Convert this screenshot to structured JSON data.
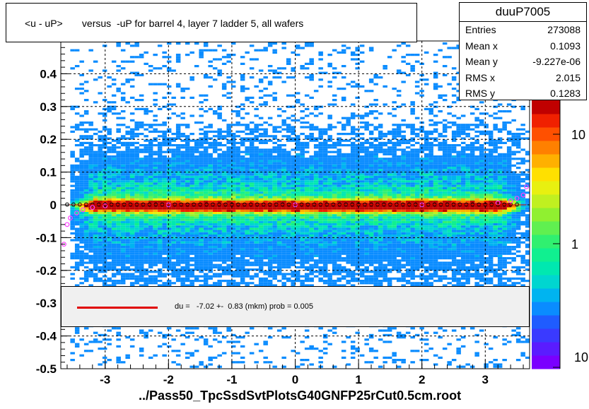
{
  "title": "<u - uP>       versus  -uP for barrel 4, layer 7 ladder 5, all wafers",
  "stats": {
    "name": "duuP7005",
    "rows": [
      {
        "k": "Entries",
        "v": "273088"
      },
      {
        "k": "Mean x",
        "v": "0.1093"
      },
      {
        "k": "Mean y",
        "v": "-9.227e-06"
      },
      {
        "k": "RMS x",
        "v": "2.015"
      },
      {
        "k": "RMS y",
        "v": "0.1283"
      }
    ]
  },
  "legend": {
    "text": "du =   -7.02 +-  0.83 (mkm) prob = 0.005",
    "color": "#e00000"
  },
  "footer": "../Pass50_TpcSsdSvtPlotsG40GNFP25rCut0.5cm.root",
  "colorbar": {
    "labels": [
      "10",
      "1",
      "10"
    ]
  },
  "chart_data": {
    "type": "heatmap",
    "xlim": [
      -3.7,
      3.7
    ],
    "ylim": [
      -0.5,
      0.5
    ],
    "x_ticks": [
      "-3",
      "-2",
      "-1",
      "0",
      "1",
      "2",
      "3"
    ],
    "y_ticks": [
      "-0.5",
      "-0.4",
      "-0.3",
      "-0.2",
      "-0.1",
      "0",
      "0.1",
      "0.2",
      "0.3",
      "0.4"
    ],
    "x_tick_values": [
      -3,
      -2,
      -1,
      0,
      1,
      2,
      3
    ],
    "y_tick_values": [
      -0.5,
      -0.4,
      -0.3,
      -0.2,
      -0.1,
      0,
      0.1,
      0.2,
      0.3,
      0.4
    ],
    "profile_points": [
      {
        "x": -3.6,
        "y": -0.01
      },
      {
        "x": -3.5,
        "y": -0.005
      },
      {
        "x": -3.4,
        "y": -0.003
      },
      {
        "x": -3.2,
        "y": -0.001
      },
      {
        "x": -3.0,
        "y": 0.0
      },
      {
        "x": -2.5,
        "y": 0.0
      },
      {
        "x": -2.0,
        "y": 0.001
      },
      {
        "x": -1.5,
        "y": 0.002
      },
      {
        "x": -1.0,
        "y": 0.002
      },
      {
        "x": -0.5,
        "y": 0.001
      },
      {
        "x": 0.0,
        "y": 0.001
      },
      {
        "x": 0.5,
        "y": 0.001
      },
      {
        "x": 1.0,
        "y": 0.002
      },
      {
        "x": 1.5,
        "y": 0.002
      },
      {
        "x": 2.0,
        "y": 0.002
      },
      {
        "x": 2.5,
        "y": 0.001
      },
      {
        "x": 3.0,
        "y": 0.002
      },
      {
        "x": 3.3,
        "y": 0.003
      },
      {
        "x": 3.5,
        "y": 0.005
      }
    ],
    "magenta_points": [
      {
        "x": -3.65,
        "y": -0.12
      },
      {
        "x": -3.6,
        "y": -0.06
      },
      {
        "x": -3.55,
        "y": -0.04
      },
      {
        "x": -3.45,
        "y": -0.025
      },
      {
        "x": -3.35,
        "y": -0.015
      },
      {
        "x": -3.2,
        "y": -0.008
      },
      {
        "x": -3.0,
        "y": -0.003
      },
      {
        "x": -2.0,
        "y": 0.0
      },
      {
        "x": 0.0,
        "y": 0.0
      },
      {
        "x": 2.0,
        "y": 0.0
      },
      {
        "x": 3.2,
        "y": 0.006
      },
      {
        "x": 3.4,
        "y": 0.012
      },
      {
        "x": 3.5,
        "y": 0.02
      },
      {
        "x": 3.6,
        "y": 0.03
      },
      {
        "x": 3.65,
        "y": 0.055
      }
    ]
  },
  "colors": {
    "scale": [
      "#7a00ff",
      "#5a1cff",
      "#3a3aff",
      "#1f5cff",
      "#0a8cff",
      "#00b4f0",
      "#00d6d0",
      "#00e8b0",
      "#10f090",
      "#30f070",
      "#60f050",
      "#90f030",
      "#c0f020",
      "#e8f010",
      "#ffe000",
      "#ffb000",
      "#ff8000",
      "#ff5000",
      "#f02000",
      "#c00000"
    ]
  }
}
